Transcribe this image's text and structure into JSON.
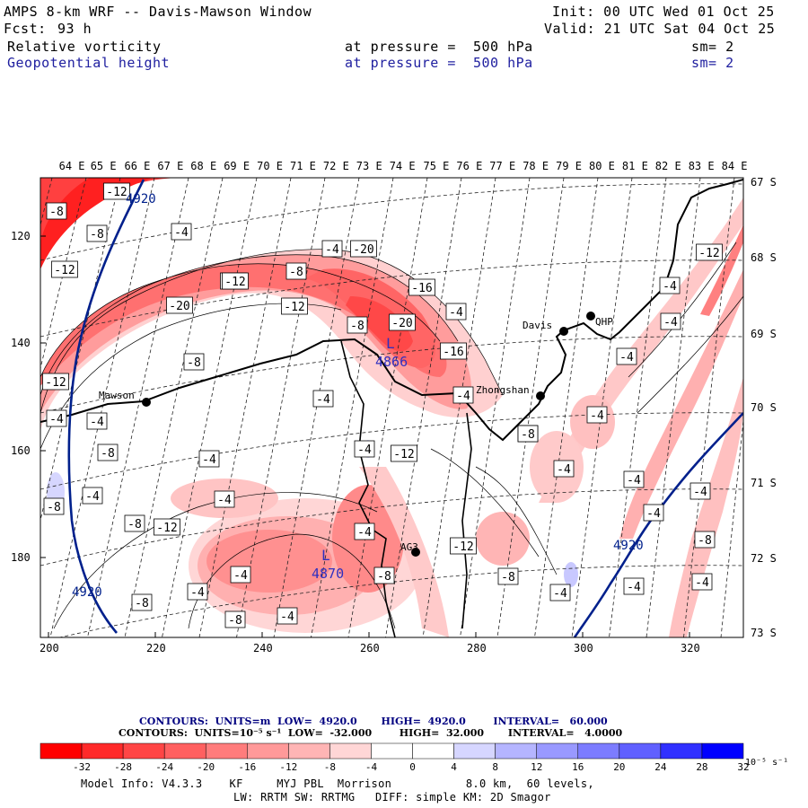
{
  "header": {
    "title": "AMPS 8-km WRF -- Davis-Mawson Window",
    "init": "Init: 00 UTC Wed 01 Oct 25",
    "fcst_label": "Fcst:",
    "fcst_value": "93 h",
    "valid": "Valid: 21 UTC Sat 04 Oct 25",
    "field1": {
      "name": "Relative vorticity",
      "level": "at pressure =  500 hPa",
      "sm": "sm= 2"
    },
    "field2": {
      "name": "Geopotential height",
      "level": "at pressure =  500 hPa",
      "sm": "sm= 2"
    }
  },
  "map": {
    "top_lon_labels": [
      "64 E",
      "65 E",
      "66 E",
      "67 E",
      "68 E",
      "69 E",
      "70 E",
      "71 E",
      "72 E",
      "73 E",
      "74 E",
      "75 E",
      "76 E",
      "77 E",
      "78 E",
      "79 E",
      "80 E",
      "81 E",
      "82 E",
      "83 E",
      "84 E"
    ],
    "right_lat_labels": [
      "67 S",
      "68 S",
      "69 S",
      "70 S",
      "71 S",
      "72 S",
      "73 S"
    ],
    "left_y_ticks": [
      "120",
      "140",
      "160",
      "180"
    ],
    "bottom_x_ticks": [
      "200",
      "220",
      "240",
      "260",
      "280",
      "300",
      "320"
    ],
    "stations": [
      {
        "name": "Mawson"
      },
      {
        "name": "Davis"
      },
      {
        "name": "Zhongshan"
      },
      {
        "name": "QHP"
      },
      {
        "name": "AG3"
      }
    ],
    "lows": [
      {
        "symbol": "L",
        "value": "4866"
      },
      {
        "symbol": "L",
        "value": "4870"
      }
    ],
    "height_labels": [
      "4920",
      "4920",
      "4920"
    ],
    "vort_labels": [
      "-8",
      "-12",
      "-8",
      "-4",
      "-12",
      "-20",
      "-16",
      "-8",
      "-4",
      "-20",
      "-12",
      "-8",
      "-12",
      "-20",
      "-4",
      "-16",
      "-16",
      "-4",
      "-8",
      "-12",
      "-4",
      "-4",
      "-4",
      "-12",
      "-8",
      "-4",
      "-4",
      "-8",
      "-4",
      "-4",
      "-8",
      "-4",
      "-4",
      "-4",
      "-12",
      "-4",
      "-4",
      "-8",
      "-8",
      "-4",
      "-12",
      "-8",
      "-12",
      "-4",
      "-8",
      "-4",
      "-4",
      "-8",
      "-8",
      "-4",
      "-4",
      "-8",
      "-4",
      "-4",
      "-4",
      "-4"
    ]
  },
  "contours": {
    "line1": "CONTOURS:  UNITS=m  LOW=  4920.0       HIGH=  4920.0        INTERVAL=   60.000",
    "line2": "CONTOURS:  UNITS=10⁻⁵ s⁻¹  LOW=  -32.000        HIGH=  32.000       INTERVAL=   4.0000"
  },
  "colorbar": {
    "labels": [
      "-32",
      "-28",
      "-24",
      "-20",
      "-16",
      "-12",
      "-8",
      "-4",
      "0",
      "4",
      "8",
      "12",
      "16",
      "20",
      "24",
      "28",
      "32"
    ],
    "unit": "10⁻⁵ s⁻¹",
    "colors": [
      "#ff0000",
      "#ff2a2a",
      "#ff4545",
      "#ff6060",
      "#ff7c7c",
      "#ff9999",
      "#ffb5b5",
      "#ffd6d6",
      "#ffffff",
      "#ffffff",
      "#d6d6ff",
      "#b5b5ff",
      "#9999ff",
      "#7c7cff",
      "#6060ff",
      "#3030ff",
      "#0000ff"
    ]
  },
  "footer": {
    "model_info": "Model Info: V4.3.3    KF     MYJ PBL  Morrison           8.0 km,  60 levels,",
    "physics": "LW: RRTM SW: RRTMG   DIFF: simple KM: 2D Smagor"
  }
}
